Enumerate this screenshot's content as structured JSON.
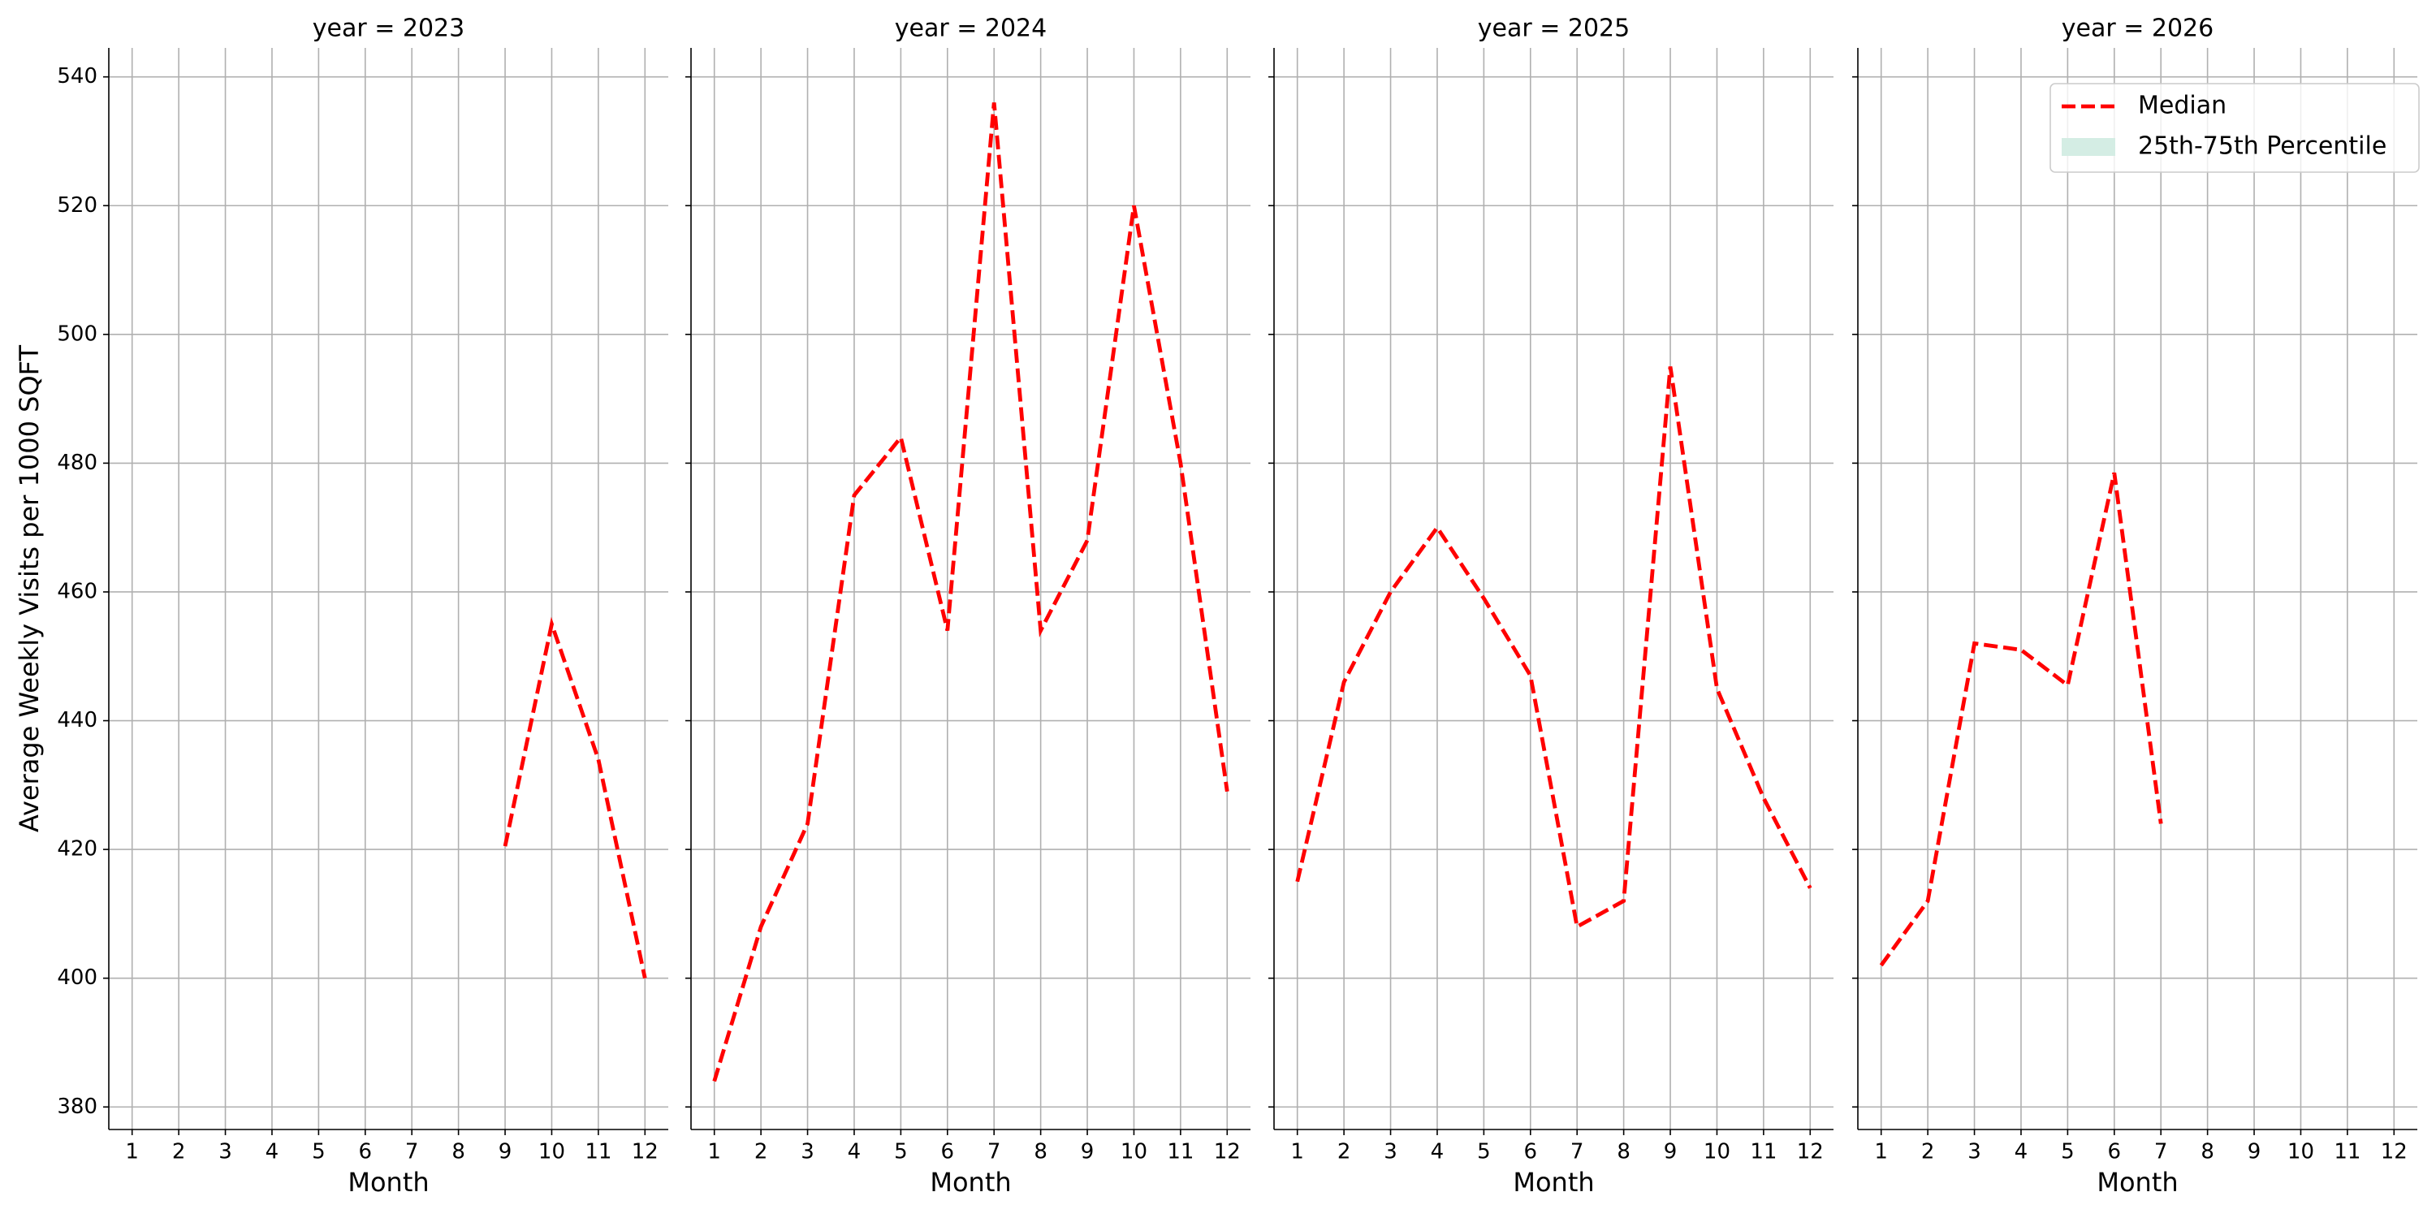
{
  "chart_data": {
    "type": "line",
    "ylabel": "Average Weekly Visits per 1000 SQFT",
    "xlabel": "Month",
    "x": [
      1,
      2,
      3,
      4,
      5,
      6,
      7,
      8,
      9,
      10,
      11,
      12
    ],
    "xlim": [
      0.5,
      12.5
    ],
    "xticks": [
      1,
      2,
      3,
      4,
      5,
      6,
      7,
      8,
      9,
      10,
      11,
      12
    ],
    "ylim": [
      376.5,
      544.5
    ],
    "yticks": [
      380,
      400,
      420,
      440,
      460,
      480,
      500,
      520,
      540
    ],
    "grid": true,
    "color": "#ff0000",
    "panels": [
      {
        "title": "year = 2023",
        "values": [
          null,
          null,
          null,
          null,
          null,
          null,
          null,
          null,
          420.5,
          455,
          434,
          400
        ]
      },
      {
        "title": "year = 2024",
        "values": [
          384,
          408,
          424,
          475,
          484,
          454,
          536,
          454,
          468,
          520,
          480,
          429
        ]
      },
      {
        "title": "year = 2025",
        "values": [
          415,
          446,
          460,
          470,
          459,
          447,
          408,
          412,
          495,
          445,
          428,
          414
        ]
      },
      {
        "title": "year = 2026",
        "values": [
          402,
          412,
          452,
          451,
          445.5,
          478.5,
          424,
          null,
          null,
          null,
          null,
          null
        ]
      }
    ],
    "legend": [
      {
        "name": "Median",
        "color": "#ff0000",
        "style": "dashed"
      },
      {
        "name": "25th-75th Percentile",
        "color": "#d4ede4",
        "style": "patch"
      }
    ],
    "legend_position": "upper right"
  }
}
